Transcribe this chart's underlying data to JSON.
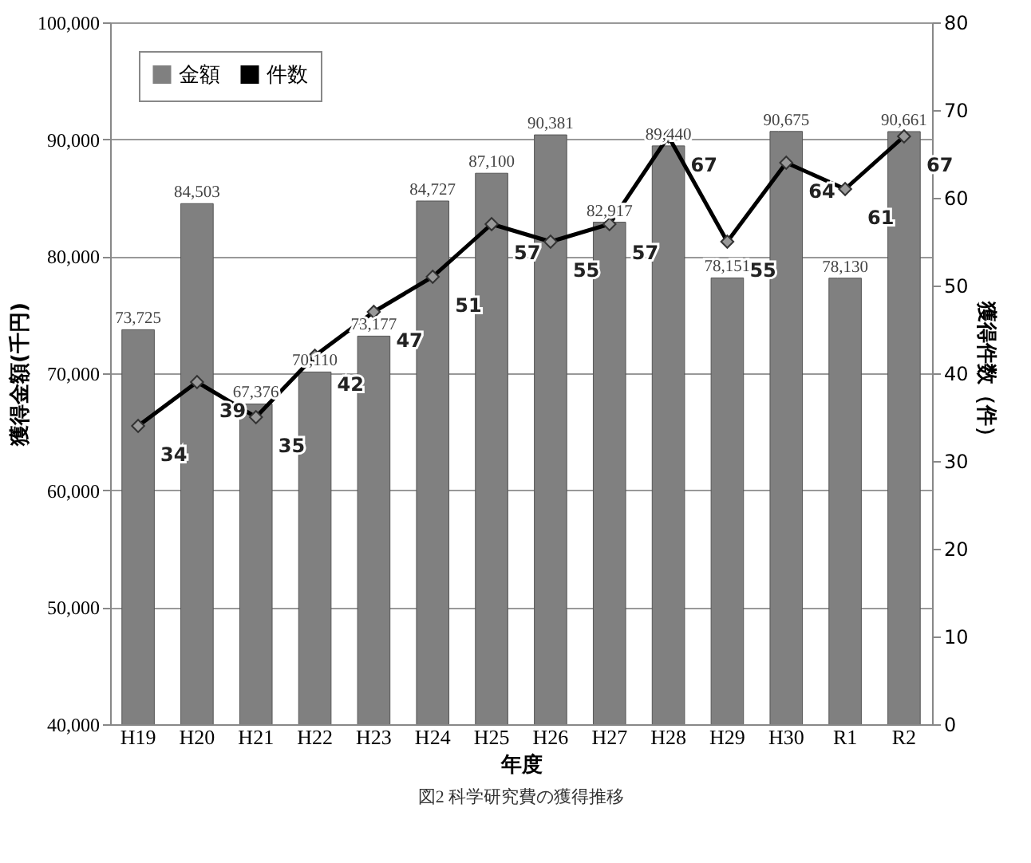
{
  "chart_data": {
    "type": "bar",
    "title": "図2 科学研究費の獲得推移",
    "xlabel": "年度",
    "ylabel": "獲得金額(千円)",
    "y2label": "獲得件数（件）",
    "categories": [
      "H19",
      "H20",
      "H21",
      "H22",
      "H23",
      "H24",
      "H25",
      "H26",
      "H27",
      "H28",
      "H29",
      "H30",
      "R1",
      "R2"
    ],
    "series": [
      {
        "name": "金額",
        "color": "#808080",
        "values": [
          73725,
          84503,
          67376,
          70110,
          73177,
          84727,
          87100,
          90381,
          82917,
          89440,
          78151,
          90675,
          78130,
          90661
        ],
        "value_labels": [
          "73,725",
          "84,503",
          "67,376",
          "70,110",
          "73,177",
          "84,727",
          "87,100",
          "90,381",
          "82,917",
          "89,440",
          "78,151",
          "90,675",
          "78,130",
          "90,661"
        ]
      },
      {
        "name": "件数",
        "type": "line",
        "axis": "y2",
        "color": "#000000",
        "values": [
          34,
          39,
          35,
          42,
          47,
          51,
          57,
          55,
          57,
          67,
          55,
          64,
          61,
          67
        ]
      }
    ],
    "ylim": [
      40000,
      100000
    ],
    "yticks": [
      {
        "value": 40000,
        "label": "40,000"
      },
      {
        "value": 50000,
        "label": "50,000"
      },
      {
        "value": 60000,
        "label": "60,000"
      },
      {
        "value": 70000,
        "label": "70,000"
      },
      {
        "value": 80000,
        "label": "80,000"
      },
      {
        "value": 90000,
        "label": "90,000"
      },
      {
        "value": 100000,
        "label": "100,000"
      }
    ],
    "y2lim": [
      0,
      80
    ],
    "y2ticks": [
      0,
      10,
      20,
      30,
      40,
      50,
      60,
      70,
      80
    ],
    "grid": "y",
    "legend": "top left",
    "marker": "diamond",
    "line_style": "solid",
    "data_labels": true
  }
}
